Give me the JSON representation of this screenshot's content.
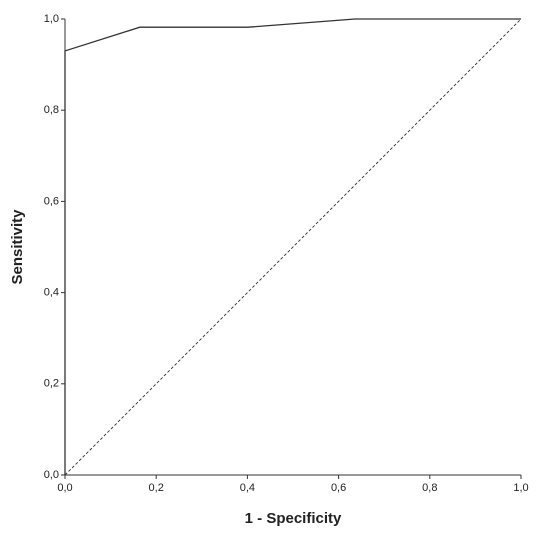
{
  "chart_data": {
    "type": "line",
    "x_label": "1 - Specificity",
    "y_label": "Sensitivity",
    "xlim": [
      0,
      1
    ],
    "ylim": [
      0,
      1
    ],
    "xticks": [
      {
        "value": 0,
        "label": "0,0"
      },
      {
        "value": 0.2,
        "label": "0,2"
      },
      {
        "value": 0.4,
        "label": "0,4"
      },
      {
        "value": 0.6,
        "label": "0,6"
      },
      {
        "value": 0.8,
        "label": "0,8"
      },
      {
        "value": 1,
        "label": "1,0"
      }
    ],
    "yticks": [
      {
        "value": 0,
        "label": "0,0"
      },
      {
        "value": 0.2,
        "label": "0,2"
      },
      {
        "value": 0.4,
        "label": "0,4"
      },
      {
        "value": 0.6,
        "label": "0,6"
      },
      {
        "value": 0.8,
        "label": "0,8"
      },
      {
        "value": 1,
        "label": "1,0"
      }
    ],
    "series": [
      {
        "color": "#333333",
        "dashed": false,
        "x": [
          0,
          0,
          0.164,
          0.401,
          0.636,
          1
        ],
        "values": [
          0,
          0.93,
          0.982,
          0.982,
          1,
          1
        ]
      },
      {
        "color": "#333333",
        "dashed": true,
        "x": [
          0,
          1
        ],
        "values": [
          0,
          1
        ]
      }
    ]
  }
}
